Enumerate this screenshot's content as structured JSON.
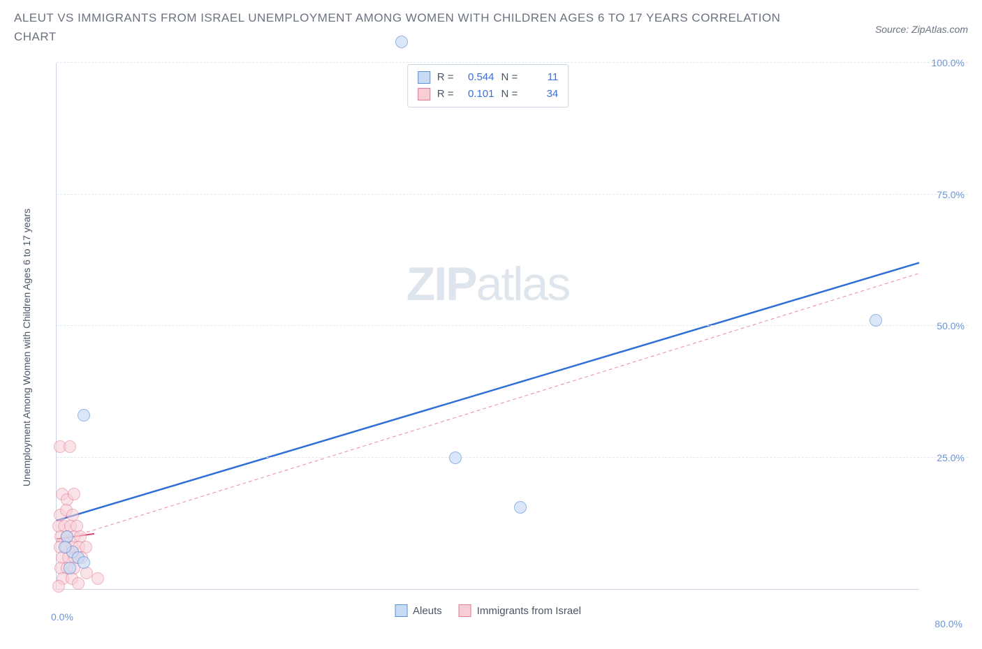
{
  "header": {
    "title": "ALEUT VS IMMIGRANTS FROM ISRAEL UNEMPLOYMENT AMONG WOMEN WITH CHILDREN AGES 6 TO 17 YEARS CORRELATION CHART",
    "source": "Source: ZipAtlas.com"
  },
  "chart": {
    "type": "scatter",
    "y_axis_label": "Unemployment Among Women with Children Ages 6 to 17 years",
    "xlim": [
      0,
      80
    ],
    "ylim": [
      0,
      100
    ],
    "x_ticks": [
      {
        "val": 0,
        "label": "0.0%"
      },
      {
        "val": 80,
        "label": "80.0%"
      }
    ],
    "y_ticks": [
      {
        "val": 25,
        "label": "25.0%"
      },
      {
        "val": 50,
        "label": "50.0%"
      },
      {
        "val": 75,
        "label": "75.0%"
      },
      {
        "val": 100,
        "label": "100.0%"
      }
    ],
    "background_color": "#ffffff",
    "grid_color": "#e2e8f0",
    "axis_color": "#cbd5e1",
    "tick_label_color": "#6b94d6",
    "point_radius": 9,
    "point_stroke_width": 1,
    "series": [
      {
        "name": "Aleuts",
        "fill": "#c7dbf5",
        "stroke": "#5b8fd6",
        "fill_opacity": 0.65,
        "R": "0.544",
        "N": "11",
        "trend": {
          "x1": 0,
          "y1": 13,
          "x2": 80,
          "y2": 62,
          "stroke": "#2f6fd6",
          "width": 2.5,
          "dash": "none"
        },
        "points": [
          {
            "x": 2.5,
            "y": 33
          },
          {
            "x": 32,
            "y": 104
          },
          {
            "x": 37,
            "y": 25
          },
          {
            "x": 43,
            "y": 15.5
          },
          {
            "x": 76,
            "y": 51
          },
          {
            "x": 1.0,
            "y": 10
          },
          {
            "x": 1.5,
            "y": 7
          },
          {
            "x": 2.0,
            "y": 6
          },
          {
            "x": 2.5,
            "y": 5
          },
          {
            "x": 1.2,
            "y": 4
          },
          {
            "x": 0.8,
            "y": 8
          }
        ]
      },
      {
        "name": "Immigrants from Israel",
        "fill": "#f7cdd6",
        "stroke": "#e17a92",
        "fill_opacity": 0.55,
        "R": "0.101",
        "N": "34",
        "trend": {
          "x1": 0,
          "y1": 9,
          "x2": 80,
          "y2": 60,
          "stroke": "#e88aa0",
          "width": 1,
          "dash": "5,4"
        },
        "short_trend": {
          "x1": 0,
          "y1": 9.5,
          "x2": 3.5,
          "y2": 10.5,
          "stroke": "#d6456b",
          "width": 2
        },
        "points": [
          {
            "x": 0.3,
            "y": 27
          },
          {
            "x": 1.2,
            "y": 27
          },
          {
            "x": 0.5,
            "y": 18
          },
          {
            "x": 1.0,
            "y": 17
          },
          {
            "x": 1.6,
            "y": 18
          },
          {
            "x": 0.3,
            "y": 14
          },
          {
            "x": 0.9,
            "y": 15
          },
          {
            "x": 1.5,
            "y": 14
          },
          {
            "x": 0.2,
            "y": 12
          },
          {
            "x": 0.7,
            "y": 12
          },
          {
            "x": 1.3,
            "y": 12
          },
          {
            "x": 1.9,
            "y": 12
          },
          {
            "x": 0.4,
            "y": 10
          },
          {
            "x": 1.0,
            "y": 10
          },
          {
            "x": 1.6,
            "y": 10
          },
          {
            "x": 2.2,
            "y": 10
          },
          {
            "x": 0.3,
            "y": 8
          },
          {
            "x": 0.9,
            "y": 8
          },
          {
            "x": 1.5,
            "y": 8
          },
          {
            "x": 2.1,
            "y": 8
          },
          {
            "x": 2.7,
            "y": 8
          },
          {
            "x": 0.5,
            "y": 6
          },
          {
            "x": 1.1,
            "y": 6
          },
          {
            "x": 1.7,
            "y": 6
          },
          {
            "x": 2.3,
            "y": 6
          },
          {
            "x": 0.4,
            "y": 4
          },
          {
            "x": 1.0,
            "y": 4
          },
          {
            "x": 1.6,
            "y": 4
          },
          {
            "x": 2.8,
            "y": 3
          },
          {
            "x": 0.6,
            "y": 2
          },
          {
            "x": 1.4,
            "y": 2
          },
          {
            "x": 2.0,
            "y": 1
          },
          {
            "x": 3.8,
            "y": 2
          },
          {
            "x": 0.2,
            "y": 0.5
          }
        ]
      }
    ],
    "legend_labels": {
      "R": "R =",
      "N": "N ="
    },
    "watermark": {
      "zip": "ZIP",
      "atlas": "atlas"
    }
  }
}
